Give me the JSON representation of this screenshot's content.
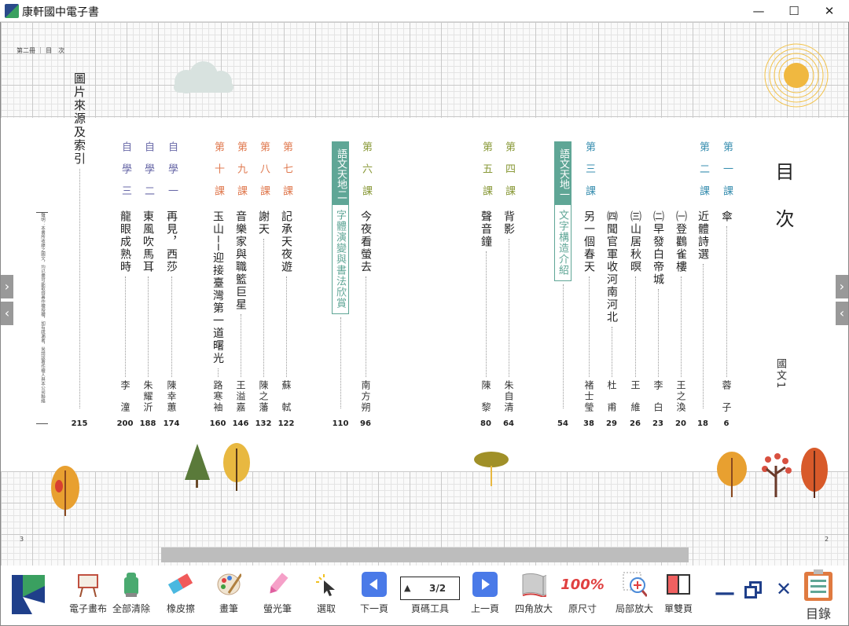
{
  "window": {
    "title": "康軒國中電子書",
    "minimize": "—",
    "maximize": "☐",
    "close": "✕"
  },
  "page": {
    "running_head": "第二冊 ｜ 目　次",
    "title": "目次",
    "book_label": "國文1",
    "left_page_number": "3",
    "right_page_number": "2",
    "notice": "聲明：本書所收錄之圖文，均已盡可能取得著作權授權，如有疏漏者，尚請該著作權人與本公司聯絡"
  },
  "colors": {
    "unit1": "#3a8fb0",
    "unit2": "#8a9a3a",
    "unit3": "#e07a50",
    "self": "#6a6aa8",
    "box": "#5fa696"
  },
  "toc": [
    {
      "header": "第一課",
      "title": "傘",
      "author": "蓉子",
      "page": "6",
      "group": "unit1"
    },
    {
      "header": "第二課",
      "title": "近體詩選",
      "author": "",
      "page": "18",
      "group": "unit1"
    },
    {
      "header": "",
      "title": "㈠登鸛雀樓",
      "author": "王之渙",
      "page": "20",
      "group": "unit1"
    },
    {
      "header": "",
      "title": "㈡早發白帝城",
      "author": "李白",
      "page": "23",
      "group": "unit1"
    },
    {
      "header": "",
      "title": "㈢山居秋暝",
      "author": "王維",
      "page": "26",
      "group": "unit1"
    },
    {
      "header": "",
      "title": "㈣聞官軍收河南河北",
      "author": "杜甫",
      "page": "29",
      "group": "unit1"
    },
    {
      "header": "第三課",
      "title": "另一個春天",
      "author": "褚士瑩",
      "page": "38",
      "group": "unit1"
    },
    {
      "box": "語文天地一",
      "title": "文字構造介紹",
      "page": "54"
    },
    {
      "header": "第四課",
      "title": "背影",
      "author": "朱自清",
      "page": "64",
      "group": "unit2"
    },
    {
      "header": "第五課",
      "title": "聲音鐘",
      "author": "陳黎",
      "page": "80",
      "group": "unit2"
    },
    {
      "header": "第六課",
      "title": "今夜看螢去",
      "author": "南方朔",
      "page": "96",
      "group": "unit2"
    },
    {
      "box": "語文天地二",
      "title": "字體演變與書法欣賞",
      "page": "110"
    },
    {
      "header": "第七課",
      "title": "記承天夜遊",
      "author": "蘇軾",
      "page": "122",
      "group": "unit3"
    },
    {
      "header": "第八課",
      "title": "謝天",
      "author": "陳之藩",
      "page": "132",
      "group": "unit3"
    },
    {
      "header": "第九課",
      "title": "音樂家與職籃巨星",
      "author": "王溢嘉",
      "page": "146",
      "group": "unit3"
    },
    {
      "header": "第十課",
      "title": "玉山──迎接臺灣第一道曙光",
      "author": "路寒袖",
      "page": "160",
      "group": "unit3"
    },
    {
      "header": "自學一",
      "title": "再見，西莎",
      "author": "陳幸蕙",
      "page": "174",
      "group": "self"
    },
    {
      "header": "自學二",
      "title": "東風吹馬耳",
      "author": "朱耀沂",
      "page": "188",
      "group": "self"
    },
    {
      "header": "自學三",
      "title": "龍眼成熟時",
      "author": "李潼",
      "page": "200",
      "group": "self"
    },
    {
      "header": "",
      "title": "圖片來源及索引",
      "author": "",
      "page": "215",
      "group": "self"
    }
  ],
  "toolbar": {
    "tools": [
      {
        "label": "電子畫布",
        "icon": "easel-icon"
      },
      {
        "label": "全部清除",
        "icon": "trash-robot-icon"
      },
      {
        "label": "橡皮擦",
        "icon": "eraser-icon"
      },
      {
        "label": "畫筆",
        "icon": "palette-icon"
      },
      {
        "label": "螢光筆",
        "icon": "highlighter-icon"
      },
      {
        "label": "選取",
        "icon": "cursor-icon"
      },
      {
        "label": "下一頁",
        "icon": "arrow-left-icon"
      },
      {
        "label": "頁碼工具",
        "icon": "page-tool-icon"
      },
      {
        "label": "上一頁",
        "icon": "arrow-right-icon"
      },
      {
        "label": "四角放大",
        "icon": "open-book-icon"
      },
      {
        "label": "原尺寸",
        "icon": "original-size-icon"
      },
      {
        "label": "局部放大",
        "icon": "zoom-in-icon"
      },
      {
        "label": "單雙頁",
        "icon": "single-double-page-icon"
      }
    ],
    "page_indicator": "3/2",
    "original_size_text": "100%",
    "toc_label": "目錄"
  }
}
